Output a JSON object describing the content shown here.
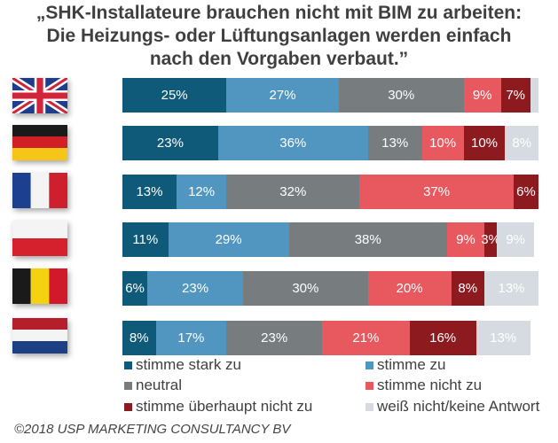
{
  "title_lines": [
    "„SHK-Installateure brauchen nicht mit BIM zu arbeiten:",
    "Die Heizungs- oder Lüftungsanlagen werden einfach",
    "nach den Vorgaben verbaut.”"
  ],
  "footer": "©2018 USP MARKETING CONSULTANCY BV",
  "chart_data": {
    "type": "bar",
    "orientation": "horizontal",
    "stacked": true,
    "title": "„SHK-Installateure brauchen nicht mit BIM zu arbeiten: Die Heizungs- oder Lüftungsanlagen werden einfach nach den Vorgaben verbaut.”",
    "xlabel": "",
    "ylabel": "",
    "xlim": [
      0,
      100
    ],
    "unit": "%",
    "grid": false,
    "legend_position": "bottom",
    "categories": [
      "United Kingdom",
      "Germany",
      "France",
      "Poland",
      "Belgium",
      "Netherlands"
    ],
    "category_icons": [
      "flag-uk",
      "flag-de",
      "flag-fr",
      "flag-pl",
      "flag-be",
      "flag-nl"
    ],
    "series": [
      {
        "name": "stimme stark zu",
        "color": "#0e5a78",
        "values": [
          25,
          23,
          13,
          11,
          6,
          8
        ]
      },
      {
        "name": "stimme zu",
        "color": "#5196c0",
        "values": [
          27,
          36,
          12,
          29,
          23,
          17
        ]
      },
      {
        "name": "neutral",
        "color": "#777d7f",
        "values": [
          30,
          13,
          32,
          38,
          30,
          23
        ]
      },
      {
        "name": "stimme nicht zu",
        "color": "#e8585f",
        "values": [
          9,
          10,
          37,
          9,
          20,
          21
        ]
      },
      {
        "name": "stimme überhaupt nicht zu",
        "color": "#8c1a1e",
        "values": [
          7,
          10,
          6,
          3,
          8,
          16
        ]
      },
      {
        "name": "weiß nicht/keine Antwort",
        "color": "#d5dbe0",
        "values": [
          2,
          8,
          0,
          9,
          13,
          13
        ]
      }
    ],
    "labels_hidden": [
      [
        false,
        false,
        false,
        false,
        false,
        true
      ],
      [
        false,
        false,
        false,
        false,
        false,
        false
      ],
      [
        false,
        false,
        false,
        false,
        false,
        true
      ],
      [
        false,
        false,
        false,
        false,
        false,
        false
      ],
      [
        false,
        false,
        false,
        false,
        false,
        false
      ],
      [
        false,
        false,
        false,
        false,
        false,
        false
      ]
    ]
  }
}
